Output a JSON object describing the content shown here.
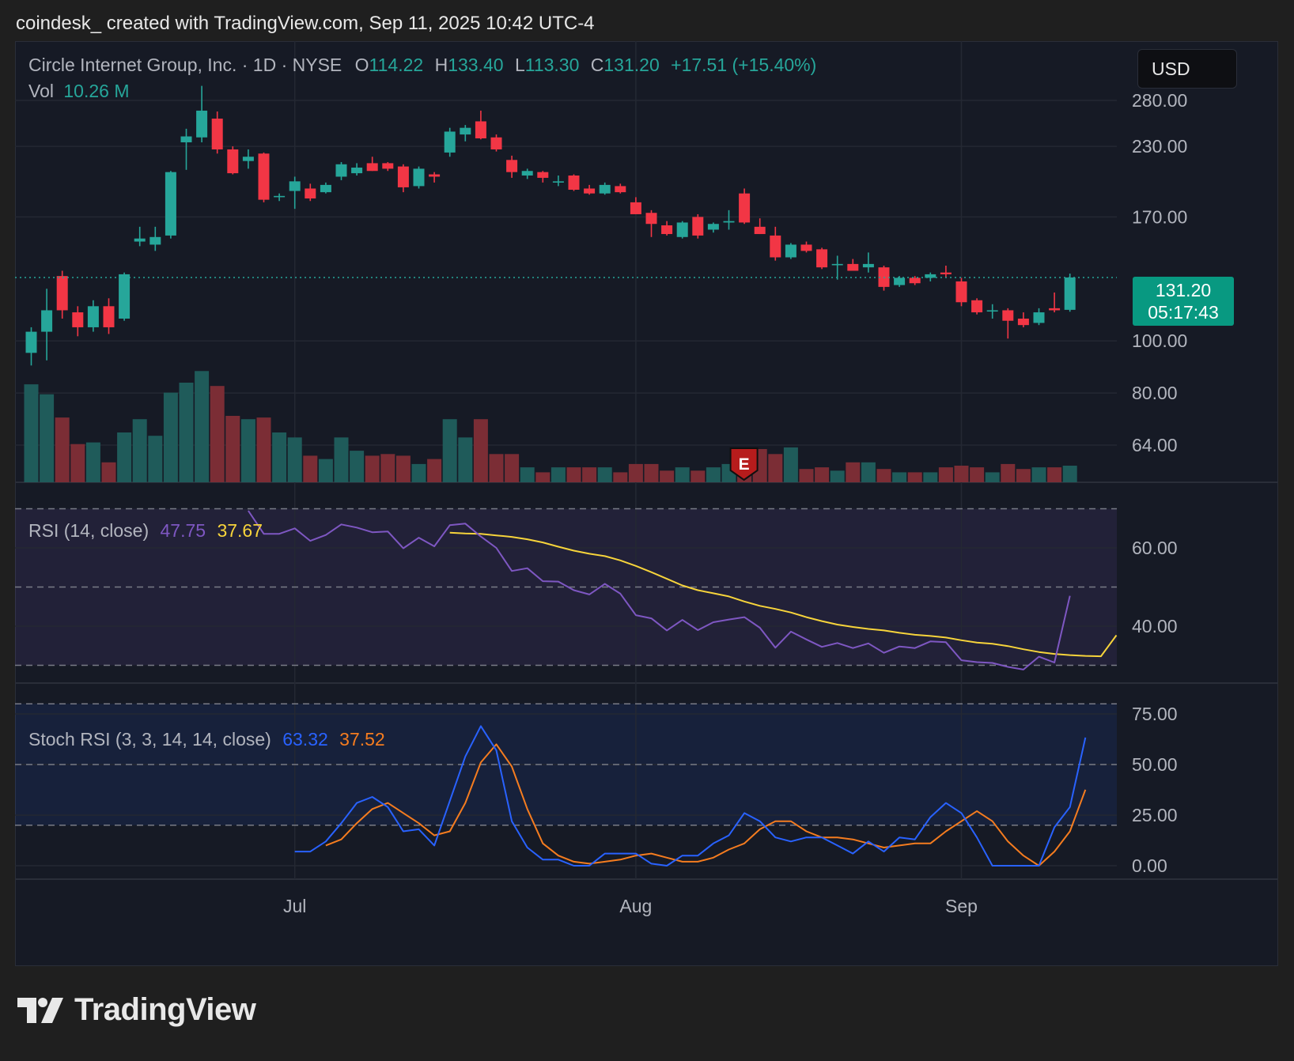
{
  "header": {
    "credit": "coindesk_ created with TradingView.com, Sep 11, 2025 10:42 UTC-4"
  },
  "legend": {
    "symbol": "Circle Internet Group, Inc. · 1D · NYSE",
    "o_label": "O",
    "o_value": "114.22",
    "h_label": "H",
    "h_value": "133.40",
    "l_label": "L",
    "l_value": "113.30",
    "c_label": "C",
    "c_value": "131.20",
    "change": "+17.51 (+15.40%)",
    "vol_label": "Vol",
    "vol_value": "10.26 M"
  },
  "currency_button": "USD",
  "price_tag": {
    "price": "131.20",
    "countdown": "05:17:43"
  },
  "rsi_legend": {
    "label": "RSI (14, close)",
    "rsi_value": "47.75",
    "ma_value": "37.67"
  },
  "stoch_legend": {
    "label": "Stoch RSI (3, 3, 14, 14, close)",
    "k_value": "63.32",
    "d_value": "37.52"
  },
  "earnings_marker": "E",
  "brand": "TradingView",
  "colors": {
    "up": "#26a69a",
    "down": "#f23645",
    "vol_up": "#1f5b5a",
    "vol_down": "#7b2d35",
    "rsi_line": "#7e57c2",
    "rsi_ma": "#f7d43b",
    "stoch_k": "#2962ff",
    "stoch_d": "#f57c1f",
    "background": "#161a25",
    "page": "#1f1f1f"
  },
  "chart_data": [
    {
      "type": "candlestick",
      "title": "Circle Internet Group, Inc. · 1D · NYSE",
      "price_scale": "log",
      "y_ticks": [
        "280.00",
        "230.00",
        "170.00",
        "100.00",
        "80.00",
        "64.00"
      ],
      "x_ticks": [
        "Jul",
        "Aug",
        "Sep"
      ],
      "last_price": 131.2,
      "candles": [
        {
          "o": 95,
          "h": 106,
          "l": 90,
          "c": 104
        },
        {
          "o": 104,
          "h": 125,
          "l": 92,
          "c": 114
        },
        {
          "o": 132,
          "h": 135,
          "l": 110,
          "c": 114
        },
        {
          "o": 113,
          "h": 116,
          "l": 102,
          "c": 106
        },
        {
          "o": 106,
          "h": 119,
          "l": 104,
          "c": 116
        },
        {
          "o": 116,
          "h": 120,
          "l": 103,
          "c": 106
        },
        {
          "o": 110,
          "h": 134,
          "l": 109,
          "c": 133
        },
        {
          "o": 153,
          "h": 163,
          "l": 150,
          "c": 155
        },
        {
          "o": 151,
          "h": 163,
          "l": 147,
          "c": 156
        },
        {
          "o": 157,
          "h": 207,
          "l": 155,
          "c": 206
        },
        {
          "o": 234,
          "h": 248,
          "l": 208,
          "c": 240
        },
        {
          "o": 239,
          "h": 298,
          "l": 234,
          "c": 268
        },
        {
          "o": 259,
          "h": 267,
          "l": 223,
          "c": 227
        },
        {
          "o": 227,
          "h": 230,
          "l": 204,
          "c": 205
        },
        {
          "o": 216,
          "h": 227,
          "l": 209,
          "c": 220
        },
        {
          "o": 223,
          "h": 224,
          "l": 181,
          "c": 183
        },
        {
          "o": 185,
          "h": 188,
          "l": 182,
          "c": 186
        },
        {
          "o": 190,
          "h": 202,
          "l": 176,
          "c": 198
        },
        {
          "o": 192,
          "h": 196,
          "l": 182,
          "c": 184
        },
        {
          "o": 189,
          "h": 197,
          "l": 188,
          "c": 195
        },
        {
          "o": 202,
          "h": 215,
          "l": 199,
          "c": 213
        },
        {
          "o": 205,
          "h": 214,
          "l": 203,
          "c": 210
        },
        {
          "o": 214,
          "h": 220,
          "l": 207,
          "c": 207
        },
        {
          "o": 214,
          "h": 215,
          "l": 207,
          "c": 209
        },
        {
          "o": 211,
          "h": 213,
          "l": 189,
          "c": 193
        },
        {
          "o": 194,
          "h": 211,
          "l": 192,
          "c": 209
        },
        {
          "o": 204,
          "h": 206,
          "l": 197,
          "c": 202
        },
        {
          "o": 224,
          "h": 249,
          "l": 220,
          "c": 245
        },
        {
          "o": 242,
          "h": 252,
          "l": 235,
          "c": 249
        },
        {
          "o": 256,
          "h": 268,
          "l": 237,
          "c": 238
        },
        {
          "o": 239,
          "h": 242,
          "l": 225,
          "c": 227
        },
        {
          "o": 217,
          "h": 221,
          "l": 201,
          "c": 206
        },
        {
          "o": 203,
          "h": 209,
          "l": 200,
          "c": 207
        },
        {
          "o": 206,
          "h": 207,
          "l": 197,
          "c": 201
        },
        {
          "o": 198,
          "h": 203,
          "l": 194,
          "c": 198
        },
        {
          "o": 203,
          "h": 204,
          "l": 190,
          "c": 191
        },
        {
          "o": 192,
          "h": 195,
          "l": 187,
          "c": 188
        },
        {
          "o": 188,
          "h": 197,
          "l": 187,
          "c": 195
        },
        {
          "o": 194,
          "h": 196,
          "l": 188,
          "c": 189
        },
        {
          "o": 181,
          "h": 185,
          "l": 172,
          "c": 172
        },
        {
          "o": 173,
          "h": 175,
          "l": 156,
          "c": 165
        },
        {
          "o": 164,
          "h": 167,
          "l": 157,
          "c": 158
        },
        {
          "o": 156,
          "h": 167,
          "l": 155,
          "c": 166
        },
        {
          "o": 170,
          "h": 172,
          "l": 155,
          "c": 157
        },
        {
          "o": 161,
          "h": 166,
          "l": 159,
          "c": 165
        },
        {
          "o": 166,
          "h": 175,
          "l": 161,
          "c": 167
        },
        {
          "o": 188,
          "h": 192,
          "l": 165,
          "c": 166
        },
        {
          "o": 163,
          "h": 169,
          "l": 158,
          "c": 158
        },
        {
          "o": 157,
          "h": 163,
          "l": 141,
          "c": 143
        },
        {
          "o": 143,
          "h": 152,
          "l": 142,
          "c": 151
        },
        {
          "o": 151,
          "h": 153,
          "l": 146,
          "c": 147
        },
        {
          "o": 148,
          "h": 149,
          "l": 136,
          "c": 137
        },
        {
          "o": 139,
          "h": 144,
          "l": 130,
          "c": 139
        },
        {
          "o": 139,
          "h": 142,
          "l": 135,
          "c": 135
        },
        {
          "o": 137,
          "h": 146,
          "l": 134,
          "c": 139
        },
        {
          "o": 137,
          "h": 138,
          "l": 124,
          "c": 126
        },
        {
          "o": 127,
          "h": 132,
          "l": 126,
          "c": 131
        },
        {
          "o": 131,
          "h": 132,
          "l": 127,
          "c": 128
        },
        {
          "o": 131,
          "h": 134,
          "l": 129,
          "c": 133
        },
        {
          "o": 134,
          "h": 138,
          "l": 131,
          "c": 133
        },
        {
          "o": 129,
          "h": 131,
          "l": 116,
          "c": 118
        },
        {
          "o": 119,
          "h": 120,
          "l": 112,
          "c": 113
        },
        {
          "o": 114,
          "h": 117,
          "l": 110,
          "c": 114
        },
        {
          "o": 114,
          "h": 115,
          "l": 101,
          "c": 109
        },
        {
          "o": 110,
          "h": 113,
          "l": 106,
          "c": 107
        },
        {
          "o": 108,
          "h": 115,
          "l": 107,
          "c": 113
        },
        {
          "o": 115,
          "h": 123,
          "l": 113,
          "c": 114
        },
        {
          "o": 114.22,
          "h": 133.4,
          "l": 113.3,
          "c": 131.2
        }
      ],
      "volume": [
        59,
        53,
        39,
        23,
        24,
        12,
        30,
        38,
        28,
        54,
        60,
        67,
        58,
        40,
        38,
        39,
        30,
        27,
        16,
        14,
        27,
        19,
        16,
        17,
        16,
        11,
        14,
        38,
        27,
        38,
        17,
        17,
        9,
        6,
        9,
        9,
        9,
        9,
        6,
        11,
        11,
        7,
        9,
        7,
        9,
        11,
        16,
        20,
        17,
        21,
        8,
        9,
        7,
        12,
        12,
        8,
        6,
        6,
        6,
        9,
        10,
        9,
        6,
        11,
        8,
        9,
        9,
        10
      ],
      "earnings_index": 46
    },
    {
      "type": "line",
      "title": "RSI (14, close)",
      "y_ticks": [
        "60.00",
        "40.00"
      ],
      "bands": [
        70,
        50,
        30
      ],
      "series": [
        {
          "start_index": 14,
          "values": [
            69.5,
            63.6,
            63.6,
            65.0,
            61.8,
            63.3,
            66.0,
            65.2,
            64.0,
            64.2,
            59.9,
            62.6,
            60.4,
            65.8,
            66.2,
            62.9,
            60.0,
            54.1,
            54.8,
            51.5,
            51.4,
            49.2,
            48.1,
            50.8,
            48.3,
            42.8,
            42.0,
            38.9,
            41.6,
            39.0,
            41.0,
            41.7,
            42.3,
            39.6,
            34.5,
            38.6,
            36.6,
            34.7,
            35.7,
            34.4,
            35.6,
            33.2,
            34.8,
            34.4,
            36.1,
            35.9,
            31.3,
            30.8,
            30.6,
            29.6,
            28.9,
            32.2,
            30.7,
            47.75
          ]
        },
        {
          "start_index": 27,
          "values": [
            63.9,
            63.7,
            63.6,
            63.2,
            62.8,
            62.2,
            61.4,
            60.3,
            59.3,
            58.5,
            57.9,
            56.8,
            55.4,
            53.8,
            52.1,
            50.4,
            49.2,
            48.4,
            47.6,
            46.3,
            45.2,
            44.4,
            43.5,
            42.3,
            41.3,
            40.4,
            39.8,
            39.3,
            38.9,
            38.3,
            37.8,
            37.5,
            37.1,
            36.4,
            35.8,
            35.5,
            34.9,
            34.1,
            33.4,
            32.9,
            32.6,
            32.4,
            32.3,
            37.67
          ]
        }
      ]
    },
    {
      "type": "line",
      "title": "Stoch RSI (3, 3, 14, 14, close)",
      "y_ticks": [
        "75.00",
        "50.00",
        "25.00",
        "0.00"
      ],
      "bands": [
        80,
        50,
        20
      ],
      "series": [
        {
          "start_index": 17,
          "values": [
            7,
            7,
            12,
            21,
            31,
            34,
            29,
            17,
            18,
            10,
            32,
            54,
            69,
            57,
            22,
            9,
            3,
            3,
            0,
            0,
            6,
            6,
            6,
            1,
            0,
            5,
            5,
            11,
            15,
            26,
            22,
            14,
            12,
            14,
            14,
            10,
            6,
            12,
            7,
            14,
            13,
            24,
            31,
            26,
            14,
            0,
            0,
            0,
            0,
            19,
            29,
            63.32
          ]
        },
        {
          "start_index": 19,
          "values": [
            10,
            13,
            21,
            28,
            31,
            26,
            21,
            15,
            17,
            31,
            51,
            60,
            49,
            28,
            11,
            5,
            2,
            1,
            2,
            3,
            5,
            6,
            4,
            2,
            2,
            4,
            8,
            11,
            18,
            22,
            22,
            17,
            14,
            14,
            13,
            11,
            9,
            10,
            11,
            11,
            17,
            22,
            27,
            22,
            12,
            5,
            0,
            7,
            17,
            37.52
          ]
        }
      ]
    }
  ]
}
